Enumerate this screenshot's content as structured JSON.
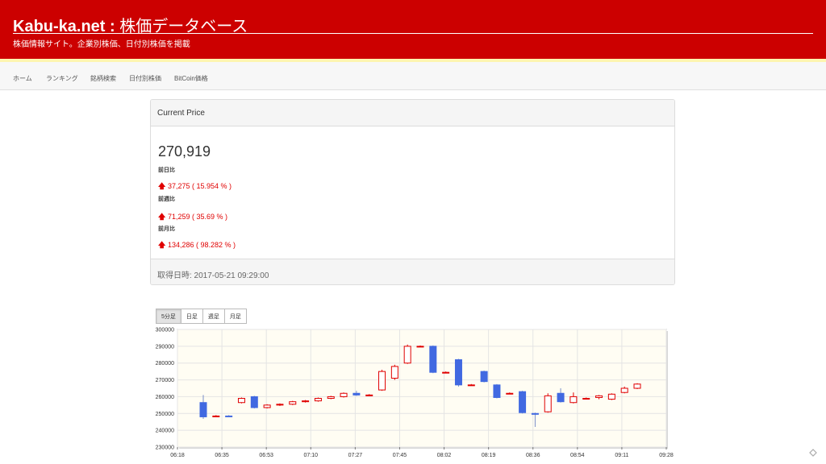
{
  "header": {
    "title_latin": "Kabu-ka.net : ",
    "title_jp": "株価データベース",
    "subtitle": "株価情報サイト。企業別株価、日付別株価を掲載"
  },
  "nav": {
    "items": [
      {
        "label": "ホーム"
      },
      {
        "label": "ランキング"
      },
      {
        "label": "銘柄検索"
      },
      {
        "label": "日付別株価"
      },
      {
        "label": "BitCoin価格"
      }
    ]
  },
  "current_price": {
    "heading": "Current Price",
    "price": "270,919",
    "changes": [
      {
        "label": "前日比",
        "value": "37,275 ( 15.954 % )",
        "arrow": "🡅"
      },
      {
        "label": "前週比",
        "value": "71,259 ( 35.69 % )",
        "arrow": "🡅"
      },
      {
        "label": "前月比",
        "value": "134,286 ( 98.282 % )",
        "arrow": "🡅"
      }
    ],
    "timestamp": "取得日時: 2017-05-21 09:29:00"
  },
  "period_tabs": [
    {
      "label": "5分足",
      "active": true
    },
    {
      "label": "日足",
      "active": false
    },
    {
      "label": "週足",
      "active": false
    },
    {
      "label": "月足",
      "active": false
    }
  ],
  "colors": {
    "header_bg": "#cc0000",
    "up_candle": "#e00000",
    "down_candle": "#4169e1",
    "plot_bg": "#fffdf3"
  },
  "chart_data": {
    "type": "candlestick",
    "ylim": [
      230000,
      300000
    ],
    "y_ticks": [
      230000,
      240000,
      250000,
      260000,
      270000,
      280000,
      290000,
      300000
    ],
    "x_ticks": [
      "06:18",
      "06:35",
      "06:53",
      "07:10",
      "07:27",
      "07:45",
      "08:02",
      "08:19",
      "08:36",
      "08:54",
      "09:11",
      "09:28"
    ],
    "grid": true,
    "candles": [
      {
        "o": 256500,
        "h": 261000,
        "l": 246800,
        "c": 248000
      },
      {
        "o": 248500,
        "h": 249000,
        "l": 248000,
        "c": 248500
      },
      {
        "o": 248500,
        "h": 249000,
        "l": 248000,
        "c": 248300
      },
      {
        "o": 256500,
        "h": 259500,
        "l": 256000,
        "c": 259000
      },
      {
        "o": 260000,
        "h": 260500,
        "l": 253000,
        "c": 253500
      },
      {
        "o": 253500,
        "h": 255500,
        "l": 253000,
        "c": 255000
      },
      {
        "o": 255000,
        "h": 256000,
        "l": 254500,
        "c": 255500
      },
      {
        "o": 255500,
        "h": 257500,
        "l": 255000,
        "c": 257000
      },
      {
        "o": 257000,
        "h": 258000,
        "l": 256500,
        "c": 257500
      },
      {
        "o": 257500,
        "h": 259500,
        "l": 257000,
        "c": 259000
      },
      {
        "o": 259000,
        "h": 260500,
        "l": 258500,
        "c": 260000
      },
      {
        "o": 260000,
        "h": 262500,
        "l": 259500,
        "c": 262000
      },
      {
        "o": 262000,
        "h": 263500,
        "l": 260500,
        "c": 261000
      },
      {
        "o": 261000,
        "h": 261500,
        "l": 260500,
        "c": 261000
      },
      {
        "o": 264000,
        "h": 276000,
        "l": 263500,
        "c": 275000
      },
      {
        "o": 271000,
        "h": 279000,
        "l": 270000,
        "c": 278000
      },
      {
        "o": 280000,
        "h": 291000,
        "l": 279500,
        "c": 290000
      },
      {
        "o": 290000,
        "h": 290500,
        "l": 289500,
        "c": 290000
      },
      {
        "o": 290000,
        "h": 290500,
        "l": 274000,
        "c": 274500
      },
      {
        "o": 274500,
        "h": 275000,
        "l": 274000,
        "c": 274500
      },
      {
        "o": 282000,
        "h": 282500,
        "l": 266000,
        "c": 267000
      },
      {
        "o": 267000,
        "h": 267500,
        "l": 266500,
        "c": 267000
      },
      {
        "o": 275000,
        "h": 275500,
        "l": 268500,
        "c": 269000
      },
      {
        "o": 267000,
        "h": 267500,
        "l": 259000,
        "c": 259500
      },
      {
        "o": 262000,
        "h": 262500,
        "l": 261500,
        "c": 262000
      },
      {
        "o": 263000,
        "h": 263500,
        "l": 250000,
        "c": 250500
      },
      {
        "o": 250000,
        "h": 250500,
        "l": 242000,
        "c": 249500
      },
      {
        "o": 251000,
        "h": 262000,
        "l": 250500,
        "c": 260500
      },
      {
        "o": 262000,
        "h": 265000,
        "l": 256500,
        "c": 257000
      },
      {
        "o": 256500,
        "h": 262500,
        "l": 256000,
        "c": 260000
      },
      {
        "o": 259000,
        "h": 259500,
        "l": 258500,
        "c": 259000
      },
      {
        "o": 259500,
        "h": 261000,
        "l": 258500,
        "c": 260500
      },
      {
        "o": 258500,
        "h": 262000,
        "l": 258000,
        "c": 261500
      },
      {
        "o": 262500,
        "h": 266000,
        "l": 262000,
        "c": 265000
      },
      {
        "o": 265000,
        "h": 268000,
        "l": 264500,
        "c": 267500
      }
    ]
  }
}
